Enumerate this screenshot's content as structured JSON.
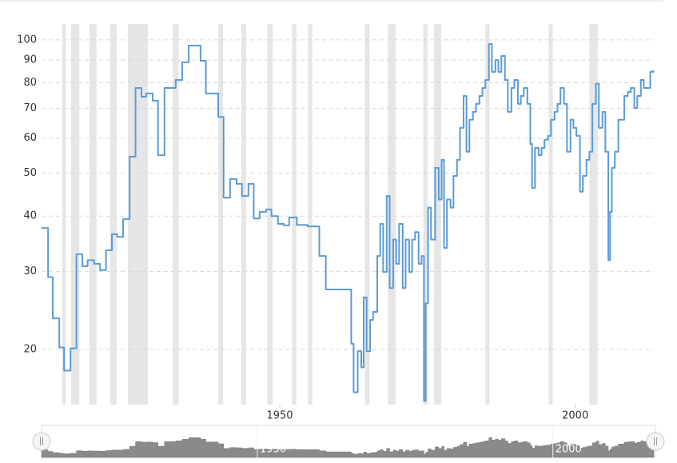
{
  "chart_data": {
    "type": "line",
    "step": true,
    "log_y": true,
    "grid": true,
    "color": "#5b9bd5",
    "band_color": "#e6e6e6",
    "xlim": [
      1912.4,
      2016
    ],
    "xticks": [
      1950,
      2000
    ],
    "ylim": [
      15,
      110
    ],
    "yticks": [
      20,
      30,
      40,
      50,
      60,
      70,
      80,
      90,
      100
    ],
    "recessions": [
      [
        1915.9,
        1916.5
      ],
      [
        1917.4,
        1918.8
      ],
      [
        1920.5,
        1921.7
      ],
      [
        1924.0,
        1925.1
      ],
      [
        1927.0,
        1930.4
      ],
      [
        1934.6,
        1935.6
      ],
      [
        1942.3,
        1943.1
      ],
      [
        1946.2,
        1947.0
      ],
      [
        1950.6,
        1951.5
      ],
      [
        1954.8,
        1955.5
      ],
      [
        1957.5,
        1958.2
      ],
      [
        1967.1,
        1967.9
      ],
      [
        1971.0,
        1972.3
      ],
      [
        1977.0,
        1977.7
      ],
      [
        1978.8,
        1980.0
      ],
      [
        1987.5,
        1988.2
      ],
      [
        1998.2,
        1998.9
      ],
      [
        2005.1,
        2006.5
      ]
    ],
    "x": [
      1912.4,
      1913.5,
      1914.3,
      1915.4,
      1916.2,
      1917.3,
      1918.3,
      1919.3,
      1920.2,
      1921.3,
      1922.3,
      1923.3,
      1924.3,
      1925.2,
      1926.2,
      1927.3,
      1928.3,
      1929.3,
      1930.1,
      1931.2,
      1932.1,
      1933.2,
      1935.1,
      1936.2,
      1937.3,
      1939.3,
      1940.2,
      1942.3,
      1943.2,
      1944.3,
      1945.4,
      1946.3,
      1947.4,
      1948.3,
      1949.3,
      1950.4,
      1951.3,
      1952.4,
      1953.4,
      1954.3,
      1955.6,
      1957.4,
      1959.4,
      1960.5,
      1964.8,
      1965.2,
      1965.9,
      1966.5,
      1966.9,
      1967.4,
      1968.0,
      1968.5,
      1969.2,
      1969.7,
      1970.2,
      1970.8,
      1971.3,
      1971.9,
      1972.4,
      1972.9,
      1973.5,
      1974.0,
      1974.6,
      1975.1,
      1975.6,
      1976.2,
      1976.7,
      1977.1,
      1977.4,
      1977.8,
      1978.3,
      1979.0,
      1979.6,
      1980.1,
      1980.5,
      1981.0,
      1981.6,
      1982.1,
      1982.7,
      1983.2,
      1983.8,
      1984.3,
      1984.8,
      1985.4,
      1985.9,
      1986.5,
      1987.0,
      1987.5,
      1988.1,
      1988.6,
      1989.2,
      1989.7,
      1990.2,
      1990.8,
      1991.3,
      1991.9,
      1992.4,
      1993.0,
      1993.5,
      1994.0,
      1994.6,
      1995.1,
      1995.4,
      1995.9,
      1996.5,
      1997.0,
      1997.5,
      1998.1,
      1998.6,
      1999.2,
      1999.7,
      2000.2,
      2000.8,
      2001.3,
      2001.9,
      2002.4,
      2002.9,
      2003.5,
      2004.0,
      2004.6,
      2005.1,
      2005.6,
      2006.2,
      2006.7,
      2007.3,
      2007.8,
      2008.3,
      2008.6,
      2008.9,
      2009.4,
      2010.0,
      2010.5,
      2011.0,
      2011.6,
      2012.1,
      2012.7,
      2013.2,
      2013.8,
      2014.3,
      2014.8,
      2015.4,
      2015.9
    ],
    "values": [
      37.6,
      29.1,
      23.5,
      20.2,
      17.9,
      20.1,
      32.8,
      30.8,
      31.8,
      31.2,
      30.2,
      33.5,
      36.4,
      35.9,
      39.4,
      54.5,
      77.9,
      74.4,
      75.7,
      72.9,
      54.9,
      77.9,
      81.2,
      89.0,
      97.1,
      89.7,
      75.7,
      67.0,
      44.0,
      48.5,
      47.3,
      44.4,
      47.3,
      39.5,
      40.9,
      41.4,
      40.0,
      38.4,
      38.1,
      39.7,
      38.2,
      37.9,
      32.5,
      27.3,
      20.6,
      16.0,
      19.8,
      18.2,
      26.2,
      19.8,
      23.3,
      24.3,
      32.5,
      38.4,
      29.9,
      44.4,
      27.5,
      35.4,
      31.2,
      38.4,
      27.5,
      35.4,
      29.9,
      35.4,
      36.8,
      31.2,
      32.5,
      15.3,
      25.4,
      41.8,
      35.4,
      51.4,
      43.6,
      53.6,
      33.9,
      43.6,
      41.8,
      49.3,
      53.6,
      63.3,
      74.7,
      55.9,
      66.0,
      68.8,
      71.7,
      74.7,
      77.9,
      81.2,
      97.9,
      84.7,
      90.1,
      84.7,
      92.0,
      81.2,
      68.8,
      77.9,
      81.2,
      71.7,
      74.7,
      77.9,
      71.7,
      58.2,
      46.3,
      57.0,
      54.9,
      57.0,
      59.5,
      60.7,
      66.0,
      68.8,
      71.7,
      77.9,
      71.7,
      55.9,
      66.0,
      63.3,
      60.7,
      45.4,
      49.3,
      53.6,
      55.9,
      71.7,
      79.6,
      63.3,
      68.8,
      55.9,
      31.8,
      40.9,
      51.4,
      55.9,
      66.0,
      66.0,
      74.7,
      76.3,
      77.9,
      70.2,
      74.7,
      81.2,
      77.9,
      77.9,
      84.7,
      85.4
    ]
  }
}
